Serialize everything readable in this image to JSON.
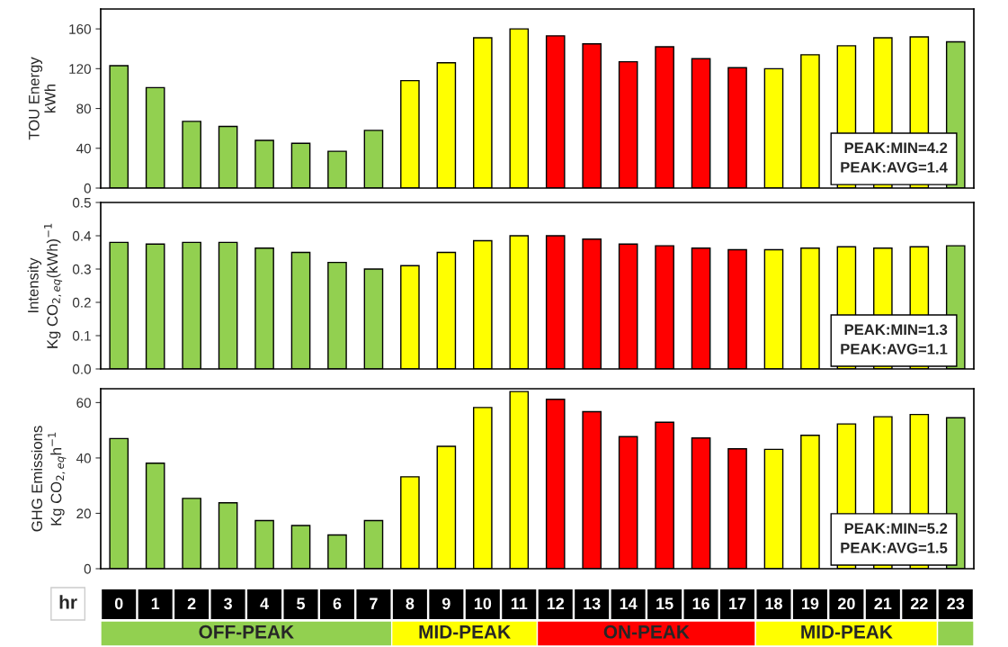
{
  "chart_data": [
    {
      "type": "bar",
      "ylabel": "TOU Energy\nkWh",
      "x": [
        0,
        1,
        2,
        3,
        4,
        5,
        6,
        7,
        8,
        9,
        10,
        11,
        12,
        13,
        14,
        15,
        16,
        17,
        18,
        19,
        20,
        21,
        22,
        23
      ],
      "xlim": [
        -0.5,
        23.5
      ],
      "values": [
        123,
        101,
        67,
        62,
        48,
        45,
        37,
        58,
        108,
        126,
        151,
        160,
        153,
        145,
        127,
        142,
        130,
        121,
        120,
        134,
        143,
        151,
        152,
        147
      ],
      "colors": [
        "#92d050",
        "#92d050",
        "#92d050",
        "#92d050",
        "#92d050",
        "#92d050",
        "#92d050",
        "#92d050",
        "#ffff00",
        "#ffff00",
        "#ffff00",
        "#ffff00",
        "#ff0000",
        "#ff0000",
        "#ff0000",
        "#ff0000",
        "#ff0000",
        "#ff0000",
        "#ffff00",
        "#ffff00",
        "#ffff00",
        "#ffff00",
        "#ffff00",
        "#92d050"
      ],
      "ylim": [
        0,
        180
      ],
      "yticks": [
        0,
        40,
        80,
        120,
        160
      ],
      "tick_labels": "y",
      "grid": false,
      "annotations": [
        "PEAK:MIN=4.2\nPEAK:AVG=1.4"
      ]
    },
    {
      "type": "bar",
      "ylabel": "Intensity\nKg CO$_{2,eq}$(kWh)$^{−1}$",
      "x": [
        0,
        1,
        2,
        3,
        4,
        5,
        6,
        7,
        8,
        9,
        10,
        11,
        12,
        13,
        14,
        15,
        16,
        17,
        18,
        19,
        20,
        21,
        22,
        23
      ],
      "xlim": [
        -0.5,
        23.5
      ],
      "values": [
        0.38,
        0.375,
        0.38,
        0.38,
        0.363,
        0.35,
        0.32,
        0.3,
        0.31,
        0.35,
        0.385,
        0.4,
        0.4,
        0.39,
        0.375,
        0.37,
        0.363,
        0.358,
        0.358,
        0.363,
        0.367,
        0.363,
        0.367,
        0.37
      ],
      "colors": [
        "#92d050",
        "#92d050",
        "#92d050",
        "#92d050",
        "#92d050",
        "#92d050",
        "#92d050",
        "#92d050",
        "#ffff00",
        "#ffff00",
        "#ffff00",
        "#ffff00",
        "#ff0000",
        "#ff0000",
        "#ff0000",
        "#ff0000",
        "#ff0000",
        "#ff0000",
        "#ffff00",
        "#ffff00",
        "#ffff00",
        "#ffff00",
        "#ffff00",
        "#92d050"
      ],
      "ylim": [
        0,
        0.5
      ],
      "yticks": [
        {
          "value": 0,
          "label": "0.0"
        },
        0.1,
        0.2,
        0.3,
        0.4,
        0.5
      ],
      "tick_labels": "y",
      "grid": false,
      "annotations": [
        "PEAK:MIN=1.3\nPEAK:AVG=1.1"
      ]
    },
    {
      "type": "bar",
      "ylabel": "GHG Emissions\nKg CO$_{2,eq}$h$^{−1}$",
      "xlabel": "hr",
      "x": [
        0,
        1,
        2,
        3,
        4,
        5,
        6,
        7,
        8,
        9,
        10,
        11,
        12,
        13,
        14,
        15,
        16,
        17,
        18,
        19,
        20,
        21,
        22,
        23
      ],
      "xlim": [
        -0.5,
        23.5
      ],
      "xticks": [
        0,
        1,
        2,
        3,
        4,
        5,
        6,
        7,
        8,
        9,
        10,
        11,
        12,
        13,
        14,
        15,
        16,
        17,
        18,
        19,
        20,
        21,
        22,
        23
      ],
      "values": [
        47,
        38.1,
        25.4,
        23.8,
        17.4,
        15.6,
        12.2,
        17.4,
        33.2,
        44.2,
        58.2,
        64,
        61.2,
        56.7,
        47.7,
        52.9,
        47.2,
        43.3,
        43.1,
        48.2,
        52.3,
        54.9,
        55.7,
        54.5
      ],
      "colors": [
        "#92d050",
        "#92d050",
        "#92d050",
        "#92d050",
        "#92d050",
        "#92d050",
        "#92d050",
        "#92d050",
        "#ffff00",
        "#ffff00",
        "#ffff00",
        "#ffff00",
        "#ff0000",
        "#ff0000",
        "#ff0000",
        "#ff0000",
        "#ff0000",
        "#ff0000",
        "#ffff00",
        "#ffff00",
        "#ffff00",
        "#ffff00",
        "#ffff00",
        "#92d050"
      ],
      "ylim": [
        0,
        65
      ],
      "yticks": [
        0,
        20,
        40,
        60
      ],
      "grid": false,
      "annotations": [
        "PEAK:MIN=5.2\nPEAK:AVG=1.5",
        "OFF-PEAK",
        "MID-PEAK",
        "ON-PEAK",
        "MID-PEAK"
      ]
    }
  ]
}
